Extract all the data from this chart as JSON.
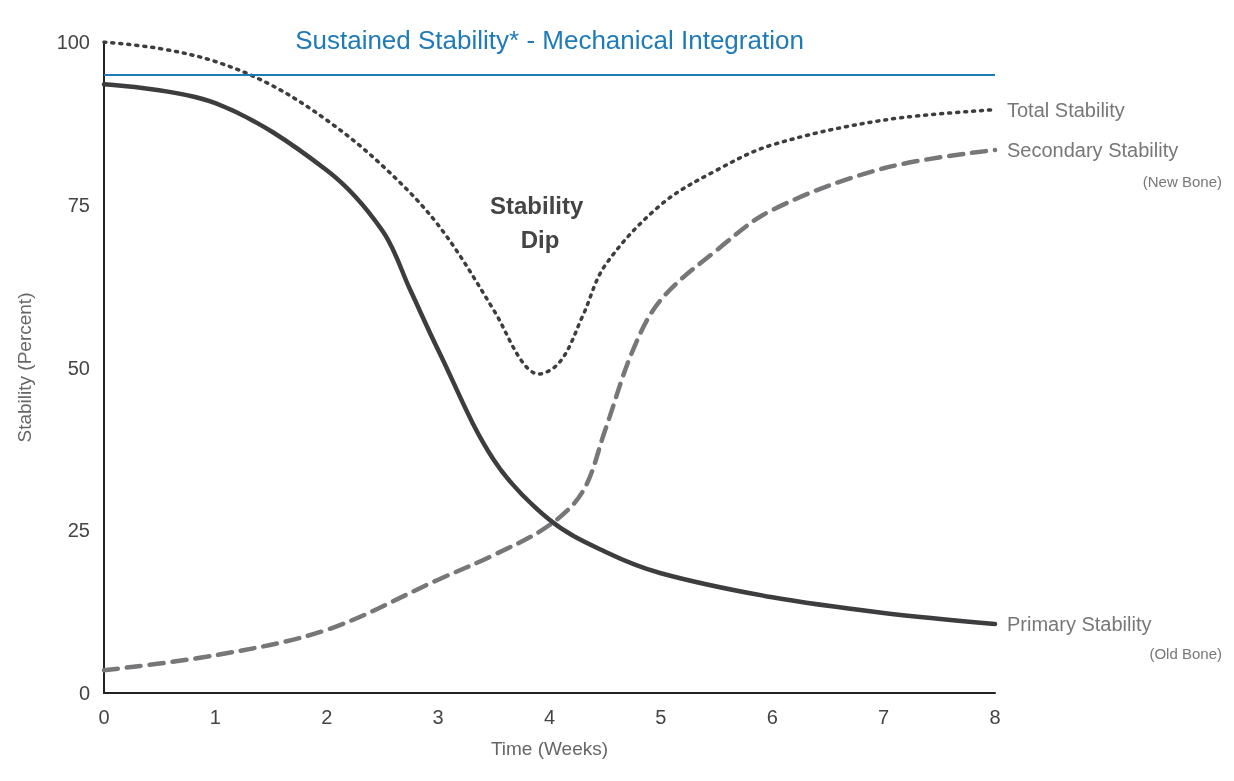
{
  "chart_data": {
    "type": "line",
    "xlabel": "Time (Weeks)",
    "ylabel": "Stability (Percent)",
    "xlim": [
      0,
      8
    ],
    "xticks": [
      0,
      1,
      2,
      3,
      4,
      5,
      6,
      7,
      8
    ],
    "ylim": [
      0,
      100
    ],
    "yticks": [
      0,
      25,
      50,
      75,
      100
    ],
    "grid": false,
    "legend": false,
    "marker": "none",
    "series": [
      {
        "name": "Total Stability",
        "color": "#3d3d3f",
        "line_style": "dotted",
        "x": [
          0,
          0.5,
          1,
          1.5,
          2,
          2.5,
          3,
          3.5,
          3.75,
          3.9,
          4.1,
          4.3,
          4.5,
          5,
          5.5,
          6,
          7,
          8
        ],
        "values": [
          100,
          99,
          97,
          93.4,
          88,
          81,
          71.9,
          58.8,
          51,
          49,
          51,
          58,
          65.7,
          75,
          80.3,
          84.2,
          88,
          89.6
        ]
      },
      {
        "name": "Secondary Stability",
        "color": "#77777a",
        "line_style": "dashed",
        "x": [
          0,
          1,
          2,
          3,
          3.5,
          4,
          4.3,
          4.5,
          4.75,
          5,
          5.5,
          6,
          7,
          8
        ],
        "values": [
          3.5,
          5.8,
          9.7,
          17.4,
          21.2,
          25.8,
          31,
          40.4,
          52.7,
          60.4,
          68,
          74.2,
          80.6,
          83.4
        ]
      },
      {
        "name": "Primary Stability",
        "color": "#3d3d3f",
        "line_style": "solid",
        "x": [
          0,
          1,
          2,
          2.5,
          2.75,
          3,
          3.5,
          4,
          4.5,
          5,
          6,
          7,
          8
        ],
        "values": [
          93.5,
          90.6,
          80.3,
          71,
          61.9,
          52.7,
          35.8,
          26.6,
          21.7,
          18.4,
          14.7,
          12.3,
          10.6
        ]
      }
    ],
    "ref_lines": [
      {
        "axis": "y",
        "value": 95,
        "label": "Sustained Stability* - Mechanical Integration",
        "color": "#1f7ab8"
      }
    ],
    "annotations": [
      "Stability Dip",
      "(New Bone)",
      "(Old Bone)"
    ]
  }
}
